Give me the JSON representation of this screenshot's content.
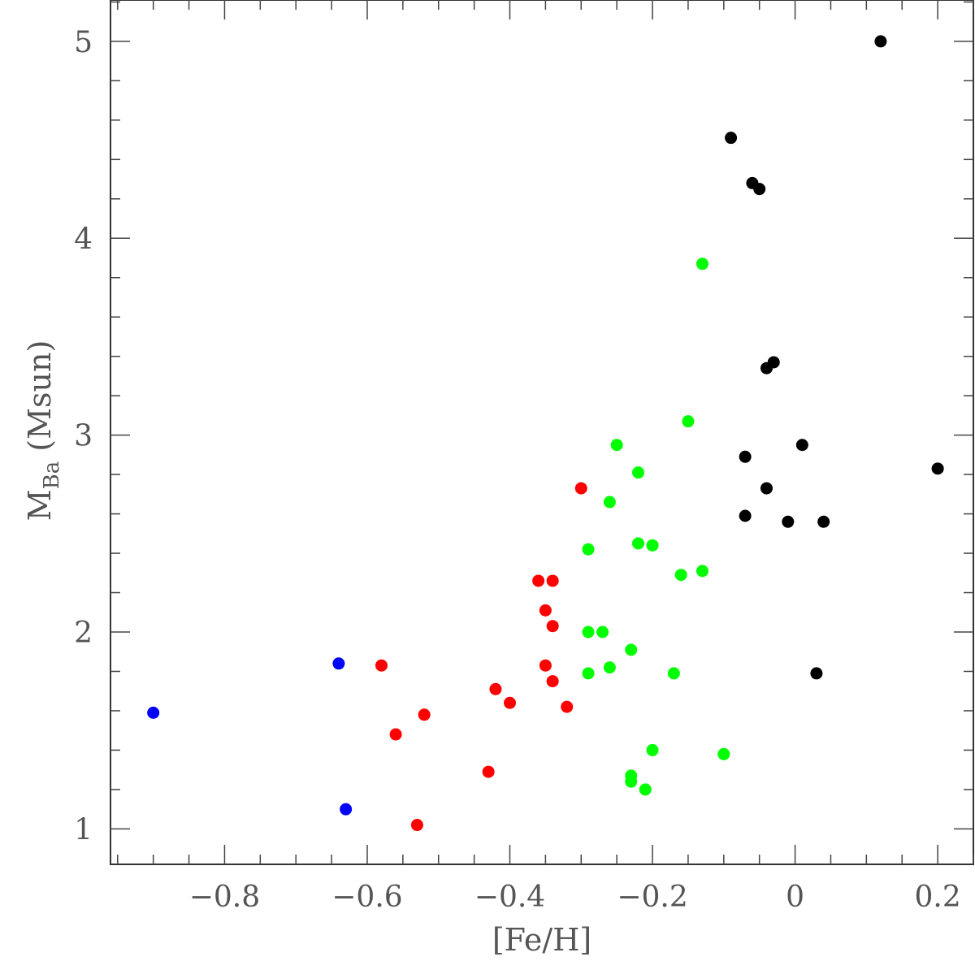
{
  "chart_data": {
    "type": "scatter",
    "xlabel": "[Fe/H]",
    "ylabel_main": "M",
    "ylabel_sub": "Ba",
    "ylabel_unit": "(Msun)",
    "xlim": [
      -0.96,
      0.25
    ],
    "ylim": [
      0.82,
      5.21
    ],
    "x_ticks": [
      -0.8,
      -0.6,
      -0.4,
      -0.2,
      0,
      0.2
    ],
    "x_tick_labels": [
      "−0.8",
      "−0.6",
      "−0.4",
      "−0.2",
      "0",
      "0.2"
    ],
    "y_ticks": [
      1,
      2,
      3,
      4,
      5
    ],
    "y_tick_labels": [
      "1",
      "2",
      "3",
      "4",
      "5"
    ],
    "grid": false,
    "series": [
      {
        "color": "#0000ff",
        "points": [
          {
            "x": -0.9,
            "y": 1.59
          },
          {
            "x": -0.64,
            "y": 1.84
          },
          {
            "x": -0.63,
            "y": 1.1
          }
        ]
      },
      {
        "color": "#ff0000",
        "points": [
          {
            "x": -0.58,
            "y": 1.83
          },
          {
            "x": -0.56,
            "y": 1.48
          },
          {
            "x": -0.52,
            "y": 1.58
          },
          {
            "x": -0.53,
            "y": 1.02
          },
          {
            "x": -0.43,
            "y": 1.29
          },
          {
            "x": -0.42,
            "y": 1.71
          },
          {
            "x": -0.4,
            "y": 1.64
          },
          {
            "x": -0.36,
            "y": 2.26
          },
          {
            "x": -0.35,
            "y": 2.11
          },
          {
            "x": -0.34,
            "y": 2.26
          },
          {
            "x": -0.34,
            "y": 2.03
          },
          {
            "x": -0.35,
            "y": 1.83
          },
          {
            "x": -0.34,
            "y": 1.75
          },
          {
            "x": -0.32,
            "y": 1.62
          },
          {
            "x": -0.3,
            "y": 2.73
          }
        ]
      },
      {
        "color": "#00ff00",
        "points": [
          {
            "x": -0.29,
            "y": 2.42
          },
          {
            "x": -0.29,
            "y": 2.0
          },
          {
            "x": -0.29,
            "y": 1.79
          },
          {
            "x": -0.27,
            "y": 2.0
          },
          {
            "x": -0.26,
            "y": 2.66
          },
          {
            "x": -0.26,
            "y": 1.82
          },
          {
            "x": -0.25,
            "y": 2.95
          },
          {
            "x": -0.23,
            "y": 1.91
          },
          {
            "x": -0.23,
            "y": 1.27
          },
          {
            "x": -0.23,
            "y": 1.24
          },
          {
            "x": -0.22,
            "y": 2.81
          },
          {
            "x": -0.22,
            "y": 2.45
          },
          {
            "x": -0.21,
            "y": 1.2
          },
          {
            "x": -0.2,
            "y": 2.44
          },
          {
            "x": -0.2,
            "y": 1.4
          },
          {
            "x": -0.17,
            "y": 1.79
          },
          {
            "x": -0.16,
            "y": 2.29
          },
          {
            "x": -0.15,
            "y": 3.07
          },
          {
            "x": -0.13,
            "y": 2.31
          },
          {
            "x": -0.13,
            "y": 3.87
          },
          {
            "x": -0.1,
            "y": 1.38
          }
        ]
      },
      {
        "color": "#000000",
        "points": [
          {
            "x": -0.09,
            "y": 4.51
          },
          {
            "x": -0.07,
            "y": 2.89
          },
          {
            "x": -0.07,
            "y": 2.59
          },
          {
            "x": -0.06,
            "y": 4.28
          },
          {
            "x": -0.05,
            "y": 4.25
          },
          {
            "x": -0.04,
            "y": 3.34
          },
          {
            "x": -0.04,
            "y": 2.73
          },
          {
            "x": -0.03,
            "y": 3.37
          },
          {
            "x": -0.01,
            "y": 2.56
          },
          {
            "x": 0.01,
            "y": 2.95
          },
          {
            "x": 0.03,
            "y": 1.79
          },
          {
            "x": 0.04,
            "y": 2.56
          },
          {
            "x": 0.12,
            "y": 5.0
          },
          {
            "x": 0.2,
            "y": 2.83
          }
        ]
      }
    ]
  }
}
